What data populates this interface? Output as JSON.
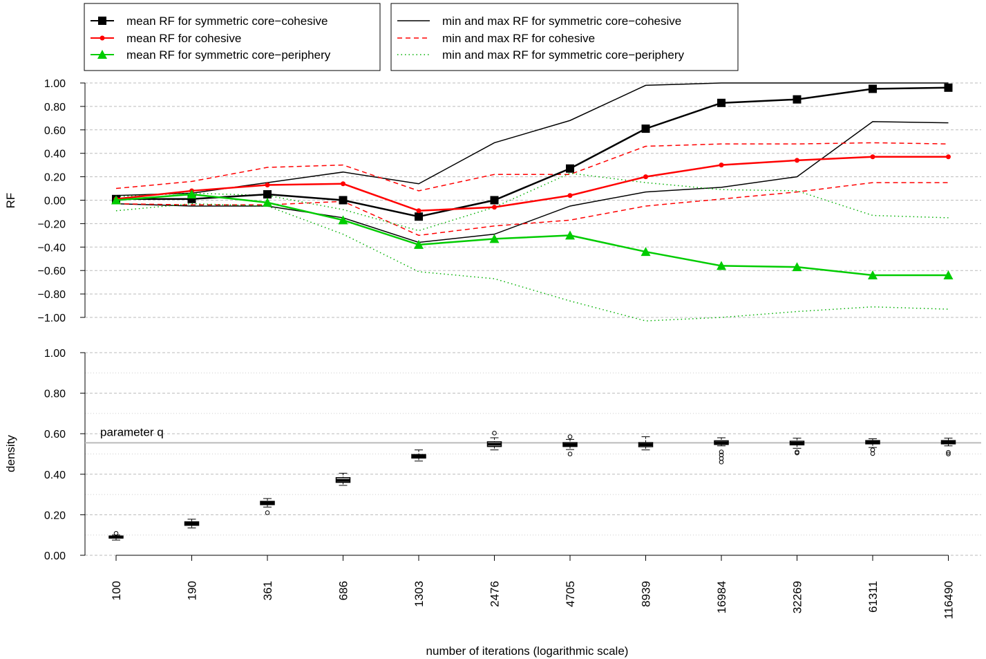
{
  "chart_data": [
    {
      "type": "line",
      "ylabel": "RF",
      "ylim": [
        -1.0,
        1.0
      ],
      "yticks": [
        "1.00",
        "0.80",
        "0.60",
        "0.40",
        "0.20",
        "0.00",
        "-0.20",
        "-0.40",
        "-0.60",
        "-0.80",
        "-1.00"
      ],
      "grid": true,
      "categories": [
        "100",
        "190",
        "361",
        "686",
        "1303",
        "2476",
        "4705",
        "8939",
        "16984",
        "32269",
        "61311",
        "116490"
      ],
      "series": [
        {
          "name": "mean RF for symmetric core−cohesive",
          "color": "#000000",
          "style": "solid",
          "marker": "square",
          "values": [
            0.01,
            0.01,
            0.05,
            0.0,
            -0.14,
            0.0,
            0.27,
            0.61,
            0.83,
            0.86,
            0.95,
            0.96
          ]
        },
        {
          "name": "mean RF for cohesive",
          "color": "#ff0000",
          "style": "solid",
          "marker": "circle",
          "values": [
            0.01,
            0.08,
            0.13,
            0.14,
            -0.09,
            -0.06,
            0.04,
            0.2,
            0.3,
            0.34,
            0.37,
            0.37
          ]
        },
        {
          "name": "mean RF for symmetric core−periphery",
          "color": "#00cc00",
          "style": "solid",
          "marker": "triangle",
          "values": [
            0.0,
            0.05,
            -0.02,
            -0.17,
            -0.38,
            -0.33,
            -0.3,
            -0.44,
            -0.56,
            -0.57,
            -0.64,
            -0.64
          ]
        },
        {
          "name": "min and max RF for symmetric core−cohesive",
          "color": "#000000",
          "style": "thin",
          "min": [
            -0.03,
            -0.05,
            -0.05,
            -0.15,
            -0.36,
            -0.29,
            -0.05,
            0.07,
            0.11,
            0.2,
            0.67,
            0.66
          ],
          "max": [
            0.04,
            0.06,
            0.15,
            0.24,
            0.14,
            0.49,
            0.68,
            0.98,
            1.0,
            1.0,
            1.0,
            1.0
          ]
        },
        {
          "name": "min and max RF for cohesive",
          "color": "#ff0000",
          "style": "dashed",
          "min": [
            -0.03,
            -0.04,
            -0.04,
            -0.01,
            -0.3,
            -0.22,
            -0.17,
            -0.05,
            0.01,
            0.07,
            0.15,
            0.15
          ],
          "max": [
            0.1,
            0.16,
            0.28,
            0.3,
            0.08,
            0.22,
            0.22,
            0.46,
            0.48,
            0.48,
            0.49,
            0.48
          ]
        },
        {
          "name": "min and max RF for symmetric core−periphery",
          "color": "#00b000",
          "style": "dotted",
          "min": [
            -0.09,
            -0.03,
            -0.05,
            -0.29,
            -0.61,
            -0.67,
            -0.86,
            -1.03,
            -1.0,
            -0.95,
            -0.91,
            -0.93
          ],
          "max": [
            0.03,
            0.06,
            0.04,
            -0.08,
            -0.26,
            -0.06,
            0.23,
            0.15,
            0.09,
            0.08,
            -0.13,
            -0.15
          ]
        }
      ],
      "legend_left": [
        "mean RF for symmetric core−cohesive",
        "mean RF for cohesive",
        "mean RF for symmetric core−periphery"
      ],
      "legend_right": [
        "min and max RF for symmetric core−cohesive",
        "min and max RF for cohesive",
        "min and max RF for symmetric core−periphery"
      ],
      "legend_position": "top"
    },
    {
      "type": "boxplot",
      "ylabel": "density",
      "xlabel": "number of iterations (logarithmic scale)",
      "ylim": [
        0.0,
        1.0
      ],
      "yticks": [
        "1.00",
        "0.80",
        "0.60",
        "0.40",
        "0.20",
        "0.00"
      ],
      "grid": true,
      "categories": [
        "100",
        "190",
        "361",
        "686",
        "1303",
        "2476",
        "4705",
        "8939",
        "16984",
        "32269",
        "61311",
        "116490"
      ],
      "reference_line": {
        "label": "parameter q",
        "value": 0.555,
        "color": "#bbbbbb"
      },
      "boxes": [
        {
          "whisker_low": 0.075,
          "q1": 0.085,
          "median": 0.09,
          "q3": 0.095,
          "whisker_high": 0.1,
          "outliers": [
            0.108
          ]
        },
        {
          "whisker_low": 0.135,
          "q1": 0.148,
          "median": 0.157,
          "q3": 0.165,
          "whisker_high": 0.178,
          "outliers": []
        },
        {
          "whisker_low": 0.238,
          "q1": 0.25,
          "median": 0.258,
          "q3": 0.266,
          "whisker_high": 0.28,
          "outliers": [
            0.21
          ]
        },
        {
          "whisker_low": 0.345,
          "q1": 0.36,
          "median": 0.37,
          "q3": 0.383,
          "whisker_high": 0.405,
          "outliers": []
        },
        {
          "whisker_low": 0.465,
          "q1": 0.48,
          "median": 0.488,
          "q3": 0.497,
          "whisker_high": 0.52,
          "outliers": []
        },
        {
          "whisker_low": 0.52,
          "q1": 0.537,
          "median": 0.548,
          "q3": 0.56,
          "whisker_high": 0.58,
          "outliers": [
            0.603
          ]
        },
        {
          "whisker_low": 0.522,
          "q1": 0.537,
          "median": 0.546,
          "q3": 0.556,
          "whisker_high": 0.572,
          "outliers": [
            0.5,
            0.585
          ]
        },
        {
          "whisker_low": 0.52,
          "q1": 0.536,
          "median": 0.546,
          "q3": 0.556,
          "whisker_high": 0.585,
          "outliers": []
        },
        {
          "whisker_low": 0.54,
          "q1": 0.547,
          "median": 0.555,
          "q3": 0.565,
          "whisker_high": 0.58,
          "outliers": [
            0.46,
            0.478,
            0.495,
            0.51
          ]
        },
        {
          "whisker_low": 0.528,
          "q1": 0.545,
          "median": 0.553,
          "q3": 0.563,
          "whisker_high": 0.578,
          "outliers": [
            0.505,
            0.51
          ]
        },
        {
          "whisker_low": 0.532,
          "q1": 0.55,
          "median": 0.557,
          "q3": 0.566,
          "whisker_high": 0.575,
          "outliers": [
            0.502,
            0.52
          ]
        },
        {
          "whisker_low": 0.54,
          "q1": 0.55,
          "median": 0.557,
          "q3": 0.566,
          "whisker_high": 0.578,
          "outliers": [
            0.5,
            0.508
          ]
        }
      ]
    }
  ]
}
